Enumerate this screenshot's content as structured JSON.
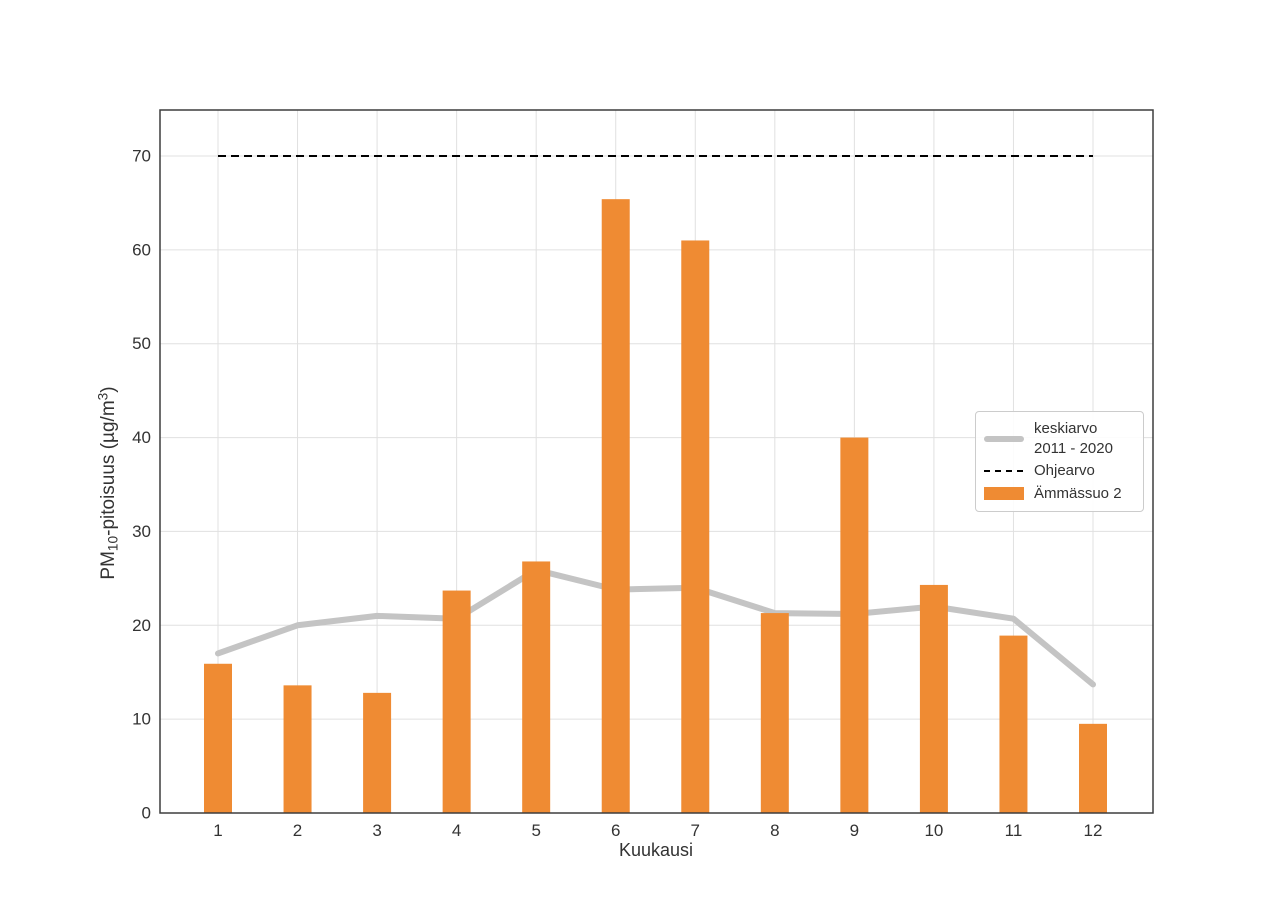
{
  "chart_data": {
    "type": "bar",
    "title": "",
    "xlabel": "Kuukausi",
    "ylabel_text": "PM10-pitoisuus (µg/m3)",
    "ylabel_parts": {
      "prefix": "PM",
      "sub": "10",
      "mid": "-pitoisuus (µg/m",
      "sup": "3",
      "suffix": ")"
    },
    "categories": [
      "1",
      "2",
      "3",
      "4",
      "5",
      "6",
      "7",
      "8",
      "9",
      "10",
      "11",
      "12"
    ],
    "series": [
      {
        "name": "keskiarvo 2011 - 2020",
        "type": "line",
        "color": "#c4c4c4",
        "values": [
          17.0,
          20.0,
          21.0,
          20.7,
          25.9,
          23.8,
          24.0,
          21.3,
          21.2,
          22.0,
          20.7,
          13.7
        ]
      },
      {
        "name": "Ohjearvo",
        "type": "hline",
        "style": "dashed",
        "color": "#000000",
        "value": 70
      },
      {
        "name": "Ämmässuo 2",
        "type": "bar",
        "color": "#ef8b33",
        "values": [
          15.9,
          13.6,
          12.8,
          23.7,
          26.8,
          65.4,
          61.0,
          21.3,
          40.0,
          24.3,
          18.9,
          9.5
        ]
      }
    ],
    "ylim": [
      0,
      74.9
    ],
    "yticks": [
      0,
      10,
      20,
      30,
      40,
      50,
      60,
      70
    ],
    "grid": true,
    "legend_position": "center-right"
  },
  "legend": {
    "items": [
      {
        "lines": [
          "keskiarvo",
          "2011 - 2020"
        ],
        "swatch": "thick-gray-line"
      },
      {
        "lines": [
          "Ohjearvo"
        ],
        "swatch": "dashed-black-line"
      },
      {
        "lines": [
          "Ämmässuo 2"
        ],
        "swatch": "orange-rect"
      }
    ]
  },
  "colors": {
    "grid": "#e0e0e0",
    "spine": "#3d3d3d",
    "text": "#333333",
    "legend_border": "#cccccc",
    "background": "#ffffff"
  }
}
